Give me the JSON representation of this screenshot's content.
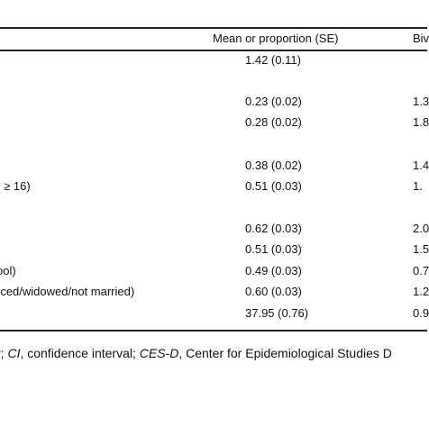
{
  "table": {
    "header": {
      "mean": "Mean or proportion (SE)",
      "biv": "Biv"
    },
    "rows": [
      {
        "label": "",
        "mean": "1.42 (0.11)",
        "biv": ""
      },
      {
        "label": "",
        "mean": "0.23 (0.02)",
        "biv": "1.3"
      },
      {
        "label": "",
        "mean": "0.28 (0.02)",
        "biv": "1.8"
      },
      {
        "label": "-",
        "mean": "0.38 (0.02)",
        "biv": "1.4"
      },
      {
        "label": "• ≥ 16)",
        "mean": "0.51 (0.03)",
        "biv": "1."
      },
      {
        "label": "",
        "mean": "0.62 (0.03)",
        "biv": "2.0"
      },
      {
        "label": "",
        "mean": "0.51 (0.03)",
        "biv": "1.5"
      },
      {
        "label": "ool)",
        "mean": "0.49 (0.03)",
        "biv": "0.7"
      },
      {
        "label": "rced/widowed/not married)",
        "mean": "0.60 (0.03)",
        "biv": "1.2"
      },
      {
        "label": "",
        "mean": "37.95 (0.76)",
        "biv": "0.9"
      }
    ]
  },
  "footnote": {
    "part1": "r; ",
    "ci_abbr": "CI",
    "part2": ", confidence interval; ",
    "cesd_abbr": "CES-D",
    "part3": ", Center for Epidemiological Studies D"
  }
}
